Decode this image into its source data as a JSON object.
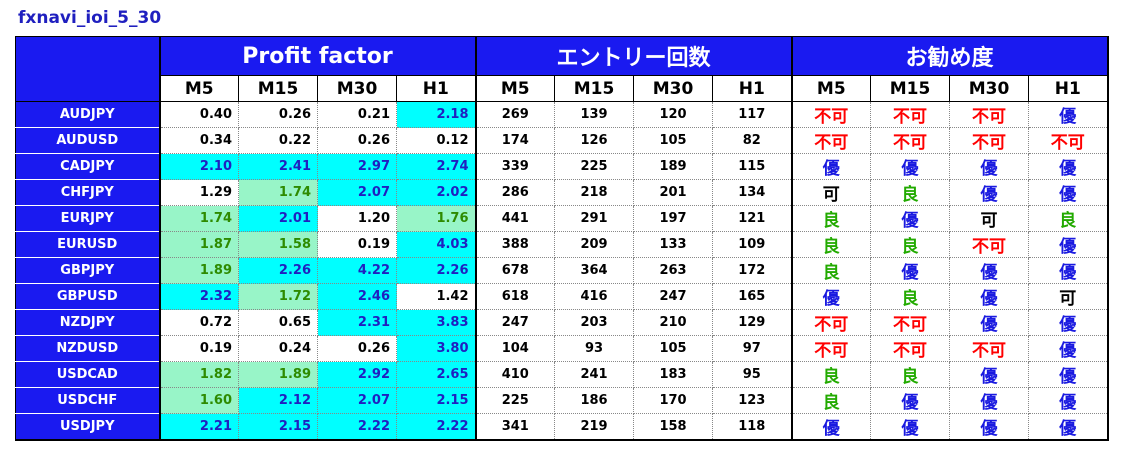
{
  "title": "fxnavi_ioi_5_30",
  "groups": {
    "pf": "Profit factor",
    "entries": "エントリー回数",
    "rec": "お勧め度"
  },
  "timeframes": [
    "M5",
    "M15",
    "M30",
    "H1"
  ],
  "colors": {
    "header_blue": "#1a1af0",
    "cyan": "#00ffff",
    "mint": "#98f5c8",
    "best": "#1a1ae0",
    "good": "#22aa00",
    "bad": "#ff0000"
  },
  "rows": [
    {
      "pair": "AUDJPY",
      "pf": [
        "0.40",
        "0.26",
        "0.21",
        "2.18"
      ],
      "pf_tier": [
        "w",
        "w",
        "w",
        "s"
      ],
      "ent": [
        "269",
        "139",
        "120",
        "117"
      ],
      "rec": [
        "不可",
        "不可",
        "不可",
        "優"
      ]
    },
    {
      "pair": "AUDUSD",
      "pf": [
        "0.34",
        "0.22",
        "0.26",
        "0.12"
      ],
      "pf_tier": [
        "w",
        "w",
        "w",
        "w"
      ],
      "ent": [
        "174",
        "126",
        "105",
        "82"
      ],
      "rec": [
        "不可",
        "不可",
        "不可",
        "不可"
      ]
    },
    {
      "pair": "CADJPY",
      "pf": [
        "2.10",
        "2.41",
        "2.97",
        "2.74"
      ],
      "pf_tier": [
        "s",
        "s",
        "s",
        "s"
      ],
      "ent": [
        "339",
        "225",
        "189",
        "115"
      ],
      "rec": [
        "優",
        "優",
        "優",
        "優"
      ]
    },
    {
      "pair": "CHFJPY",
      "pf": [
        "1.29",
        "1.74",
        "2.07",
        "2.02"
      ],
      "pf_tier": [
        "w",
        "g",
        "s",
        "s"
      ],
      "ent": [
        "286",
        "218",
        "201",
        "134"
      ],
      "rec": [
        "可",
        "良",
        "優",
        "優"
      ]
    },
    {
      "pair": "EURJPY",
      "pf": [
        "1.74",
        "2.01",
        "1.20",
        "1.76"
      ],
      "pf_tier": [
        "g",
        "s",
        "w",
        "g"
      ],
      "ent": [
        "441",
        "291",
        "197",
        "121"
      ],
      "rec": [
        "良",
        "優",
        "可",
        "良"
      ]
    },
    {
      "pair": "EURUSD",
      "pf": [
        "1.87",
        "1.58",
        "0.19",
        "4.03"
      ],
      "pf_tier": [
        "g",
        "g",
        "w",
        "s"
      ],
      "ent": [
        "388",
        "209",
        "133",
        "109"
      ],
      "rec": [
        "良",
        "良",
        "不可",
        "優"
      ]
    },
    {
      "pair": "GBPJPY",
      "pf": [
        "1.89",
        "2.26",
        "4.22",
        "2.26"
      ],
      "pf_tier": [
        "g",
        "s",
        "s",
        "s"
      ],
      "ent": [
        "678",
        "364",
        "263",
        "172"
      ],
      "rec": [
        "良",
        "優",
        "優",
        "優"
      ]
    },
    {
      "pair": "GBPUSD",
      "pf": [
        "2.32",
        "1.72",
        "2.46",
        "1.42"
      ],
      "pf_tier": [
        "s",
        "g",
        "s",
        "w"
      ],
      "ent": [
        "618",
        "416",
        "247",
        "165"
      ],
      "rec": [
        "優",
        "良",
        "優",
        "可"
      ]
    },
    {
      "pair": "NZDJPY",
      "pf": [
        "0.72",
        "0.65",
        "2.31",
        "3.83"
      ],
      "pf_tier": [
        "w",
        "w",
        "s",
        "s"
      ],
      "ent": [
        "247",
        "203",
        "210",
        "129"
      ],
      "rec": [
        "不可",
        "不可",
        "優",
        "優"
      ]
    },
    {
      "pair": "NZDUSD",
      "pf": [
        "0.19",
        "0.24",
        "0.26",
        "3.80"
      ],
      "pf_tier": [
        "w",
        "w",
        "w",
        "s"
      ],
      "ent": [
        "104",
        "93",
        "105",
        "97"
      ],
      "rec": [
        "不可",
        "不可",
        "不可",
        "優"
      ]
    },
    {
      "pair": "USDCAD",
      "pf": [
        "1.82",
        "1.89",
        "2.92",
        "2.65"
      ],
      "pf_tier": [
        "g",
        "g",
        "s",
        "s"
      ],
      "ent": [
        "410",
        "241",
        "183",
        "95"
      ],
      "rec": [
        "良",
        "良",
        "優",
        "優"
      ]
    },
    {
      "pair": "USDCHF",
      "pf": [
        "1.60",
        "2.12",
        "2.07",
        "2.15"
      ],
      "pf_tier": [
        "g",
        "s",
        "s",
        "s"
      ],
      "ent": [
        "225",
        "186",
        "170",
        "123"
      ],
      "rec": [
        "良",
        "優",
        "優",
        "優"
      ]
    },
    {
      "pair": "USDJPY",
      "pf": [
        "2.21",
        "2.15",
        "2.22",
        "2.22"
      ],
      "pf_tier": [
        "s",
        "s",
        "s",
        "s"
      ],
      "ent": [
        "341",
        "219",
        "158",
        "118"
      ],
      "rec": [
        "優",
        "優",
        "優",
        "優"
      ]
    }
  ]
}
